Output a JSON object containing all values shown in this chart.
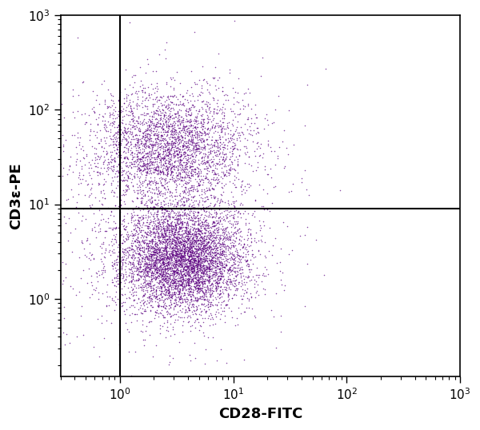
{
  "xlabel": "CD28-FITC",
  "ylabel": "CD3ε-PE",
  "xlim": [
    0.3,
    1000
  ],
  "ylim": [
    0.15,
    1000
  ],
  "gate_x": 1.0,
  "gate_y": 9.0,
  "dot_color": "#5B0080",
  "dot_size": 1.2,
  "dot_alpha": 0.7,
  "n_points": 9000,
  "background_color": "#ffffff",
  "xlabel_fontsize": 13,
  "ylabel_fontsize": 13,
  "tick_fontsize": 11,
  "seed": 42
}
